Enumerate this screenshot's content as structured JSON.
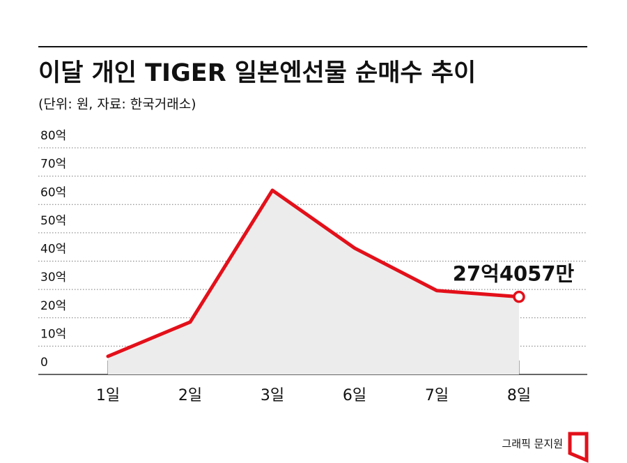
{
  "chart_data": {
    "type": "line",
    "title": "이달 개인 TIGER 일본엔선물 순매수 추이",
    "subtitle": "(단위: 원, 자료: 한국거래소)",
    "categories": [
      "1일",
      "2일",
      "3일",
      "6일",
      "7일",
      "8일"
    ],
    "series": [
      {
        "name": "순매수",
        "color": "#e3101a",
        "values": [
          6.4,
          18.5,
          65,
          44.6,
          29.6,
          27.4057
        ],
        "value_labels": [
          null,
          null,
          null,
          null,
          null,
          "27억4057만"
        ]
      }
    ],
    "ylim": [
      0,
      80
    ],
    "yticks": [
      0,
      {
        "value": 10,
        "label": "10억"
      },
      {
        "value": 20,
        "label": "20억"
      },
      {
        "value": 30,
        "label": "30억"
      },
      {
        "value": 40,
        "label": "40억"
      },
      {
        "value": 50,
        "label": "50억"
      },
      {
        "value": 60,
        "label": "60억"
      },
      {
        "value": 70,
        "label": "70억"
      },
      {
        "value": 80,
        "label": "80억"
      }
    ],
    "grid": true,
    "area_color": "#ececec",
    "credit": "그래픽 문지원"
  }
}
